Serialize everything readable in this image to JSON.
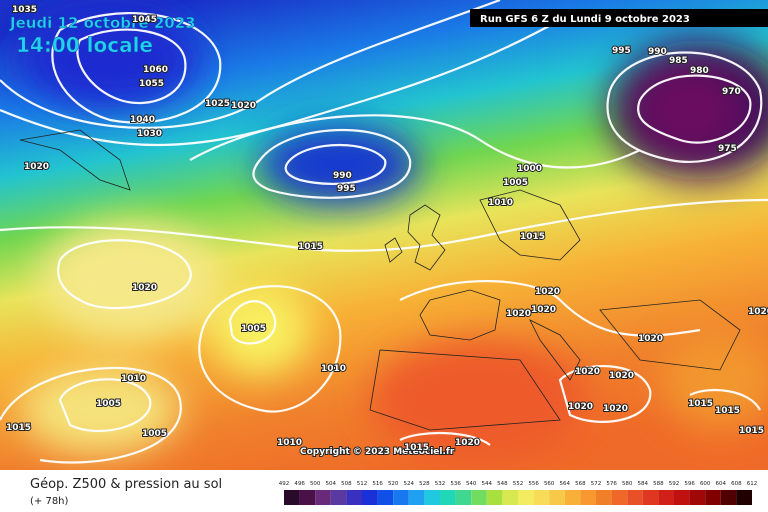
{
  "header": {
    "date": "Jeudi 12 octobre 2023",
    "time": "14:00 locale",
    "run": "Run GFS 6 Z du Lundi 9 octobre 2023"
  },
  "copyright": "Copyright © 2023 Meteociel.fr",
  "footer": {
    "title": "Géop. Z500 & pression au sol",
    "lead": "(+ 78h)"
  },
  "scale_labels": [
    "492",
    "496",
    "500",
    "504",
    "508",
    "512",
    "516",
    "520",
    "524",
    "528",
    "532",
    "536",
    "540",
    "544",
    "548",
    "552",
    "556",
    "560",
    "564",
    "568",
    "572",
    "576",
    "580",
    "584",
    "588",
    "592",
    "596",
    "600",
    "604",
    "608",
    "612"
  ],
  "isobar_labels": [
    "1045",
    "1035",
    "1060",
    "1055",
    "1040",
    "1030",
    "1025",
    "1020",
    "1020",
    "990",
    "995",
    "1000",
    "1005",
    "1010",
    "995",
    "990",
    "985",
    "980",
    "970",
    "975",
    "1015",
    "1015",
    "1020",
    "1020",
    "1020",
    "1020",
    "1005",
    "1010",
    "1020",
    "1020",
    "1020",
    "1010",
    "1005",
    "1020",
    "1020",
    "1015",
    "1015",
    "1005",
    "1015",
    "1015",
    "1010",
    "1015",
    "1020",
    "1020"
  ]
}
